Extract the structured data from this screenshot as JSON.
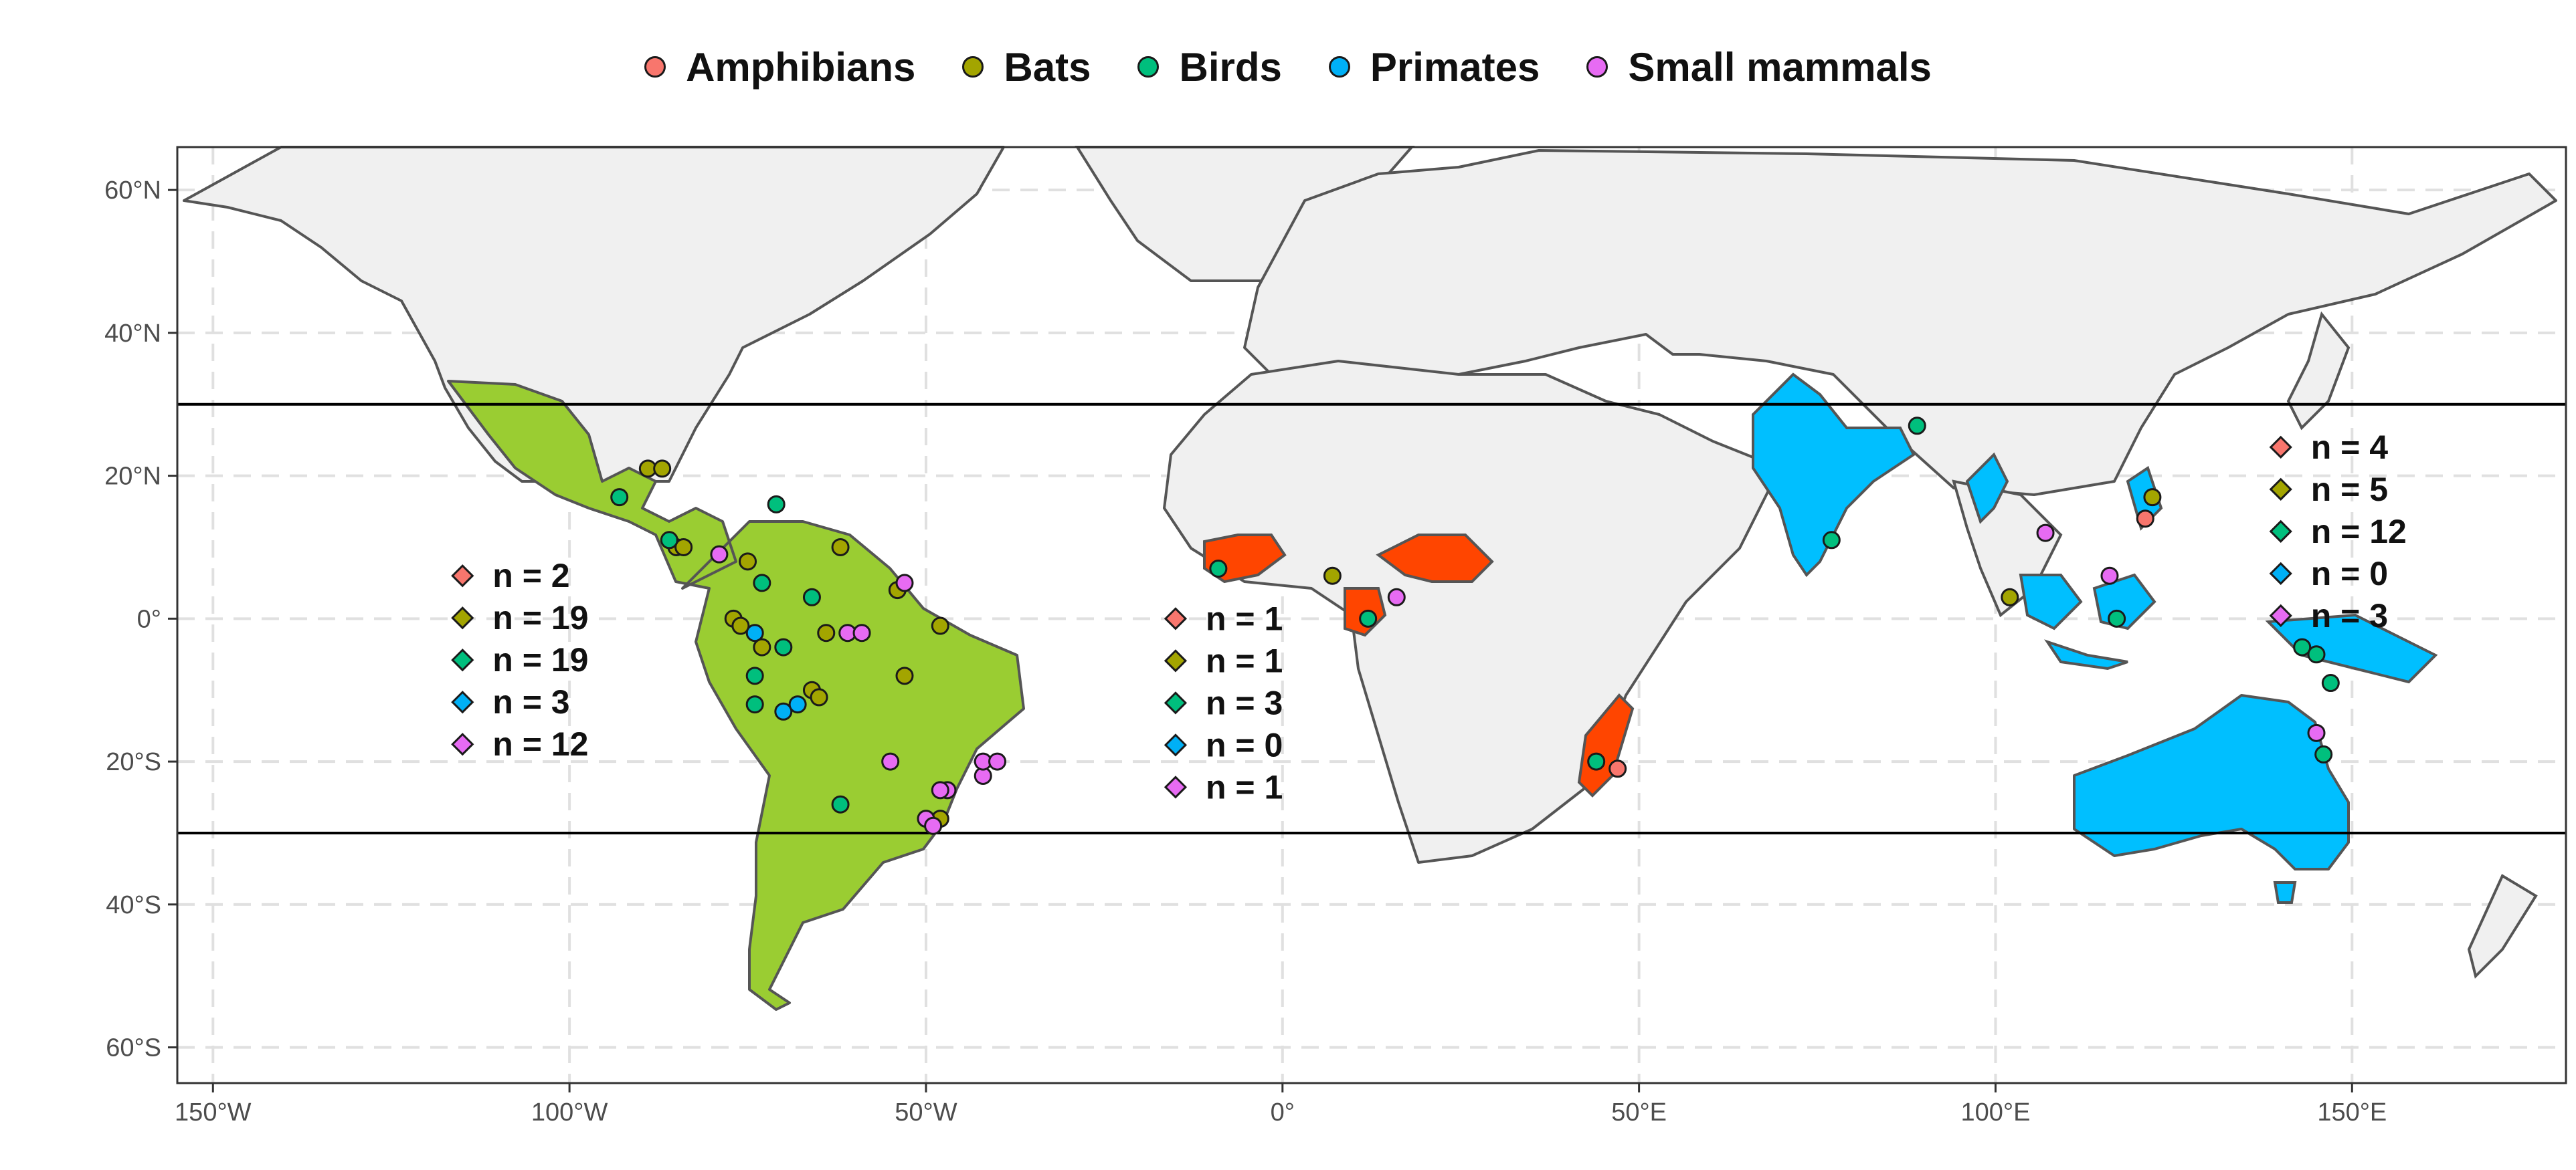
{
  "legend": [
    {
      "label": "Amphibians",
      "color": "#f8766d"
    },
    {
      "label": "Bats",
      "color": "#a3a500"
    },
    {
      "label": "Birds",
      "color": "#00bf7d"
    },
    {
      "label": "Primates",
      "color": "#00b0f6"
    },
    {
      "label": "Small mammals",
      "color": "#e76bf3"
    }
  ],
  "chart_data": {
    "type": "scatter",
    "title": "",
    "xlabel": "",
    "ylabel": "",
    "xlim": [
      -155,
      180
    ],
    "ylim": [
      -65,
      66
    ],
    "x_ticks": [
      {
        "value": -150,
        "label": "150°W"
      },
      {
        "value": -100,
        "label": "100°W"
      },
      {
        "value": -50,
        "label": "50°W"
      },
      {
        "value": 0,
        "label": "0°"
      },
      {
        "value": 50,
        "label": "50°E"
      },
      {
        "value": 100,
        "label": "100°E"
      },
      {
        "value": 150,
        "label": "150°E"
      }
    ],
    "y_ticks": [
      {
        "value": 60,
        "label": "60°N"
      },
      {
        "value": 40,
        "label": "40°N"
      },
      {
        "value": 20,
        "label": "20°N"
      },
      {
        "value": 0,
        "label": "0°"
      },
      {
        "value": -20,
        "label": "20°S"
      },
      {
        "value": -40,
        "label": "40°S"
      },
      {
        "value": -60,
        "label": "60°S"
      }
    ],
    "grid": true,
    "tropic_lines": [
      30,
      -30
    ],
    "region_colors": {
      "americas": "#9acd32",
      "africa": "#ff4500",
      "asia_oceania": "#00bfff",
      "land": "#f0f0f0",
      "border": "#555555"
    },
    "region_counts": [
      {
        "region": "americas",
        "anchor": [
          -115,
          6
        ],
        "counts": [
          {
            "group": "Amphibians",
            "text": "n =  2"
          },
          {
            "group": "Bats",
            "text": "n =  19"
          },
          {
            "group": "Birds",
            "text": "n =  19"
          },
          {
            "group": "Primates",
            "text": "n =  3"
          },
          {
            "group": "Small mammals",
            "text": "n =  12"
          }
        ]
      },
      {
        "region": "africa",
        "anchor": [
          -15,
          0
        ],
        "counts": [
          {
            "group": "Amphibians",
            "text": "n =  1"
          },
          {
            "group": "Bats",
            "text": "n =  1"
          },
          {
            "group": "Birds",
            "text": "n =  3"
          },
          {
            "group": "Primates",
            "text": "n =  0"
          },
          {
            "group": "Small mammals",
            "text": "n =  1"
          }
        ]
      },
      {
        "region": "asia_oceania",
        "anchor": [
          140,
          24
        ],
        "counts": [
          {
            "group": "Amphibians",
            "text": "n =  4"
          },
          {
            "group": "Bats",
            "text": "n =  5"
          },
          {
            "group": "Birds",
            "text": "n =  12"
          },
          {
            "group": "Primates",
            "text": "n =  0"
          },
          {
            "group": "Small mammals",
            "text": "n =  3"
          }
        ]
      }
    ],
    "series": [
      {
        "name": "Amphibians",
        "points": [
          [
            121,
            14
          ],
          [
            47,
            -21
          ]
        ]
      },
      {
        "name": "Bats",
        "points": [
          [
            -89,
            21
          ],
          [
            -87,
            21
          ],
          [
            -85,
            10
          ],
          [
            -84,
            10
          ],
          [
            -75,
            8
          ],
          [
            -62,
            10
          ],
          [
            -77,
            0
          ],
          [
            -76,
            -1
          ],
          [
            -73,
            -4
          ],
          [
            -64,
            -2
          ],
          [
            -66,
            -10
          ],
          [
            -65,
            -11
          ],
          [
            -53,
            -8
          ],
          [
            -54,
            4
          ],
          [
            -48,
            -1
          ],
          [
            -48,
            -28
          ],
          [
            7,
            6
          ],
          [
            102,
            3
          ],
          [
            122,
            17
          ]
        ]
      },
      {
        "name": "Birds",
        "points": [
          [
            -93,
            17
          ],
          [
            -86,
            11
          ],
          [
            -71,
            16
          ],
          [
            -73,
            5
          ],
          [
            -66,
            3
          ],
          [
            -74,
            -8
          ],
          [
            -74,
            -12
          ],
          [
            -70,
            -4
          ],
          [
            -62,
            -26
          ],
          [
            -9,
            7
          ],
          [
            12,
            0
          ],
          [
            44,
            -20
          ],
          [
            77,
            11
          ],
          [
            89,
            27
          ],
          [
            117,
            0
          ],
          [
            143,
            -4
          ],
          [
            145,
            -5
          ],
          [
            147,
            -9
          ],
          [
            146,
            -19
          ]
        ]
      },
      {
        "name": "Primates",
        "points": [
          [
            -74,
            -2
          ],
          [
            -70,
            -13
          ],
          [
            -68,
            -12
          ]
        ]
      },
      {
        "name": "Small mammals",
        "points": [
          [
            -79,
            9
          ],
          [
            -61,
            -2
          ],
          [
            -59,
            -2
          ],
          [
            -53,
            5
          ],
          [
            -55,
            -20
          ],
          [
            -47,
            -24
          ],
          [
            -48,
            -24
          ],
          [
            -42,
            -22
          ],
          [
            -42,
            -20
          ],
          [
            -40,
            -20
          ],
          [
            -50,
            -28
          ],
          [
            -49,
            -29
          ],
          [
            16,
            3
          ],
          [
            107,
            12
          ],
          [
            116,
            6
          ],
          [
            145,
            -16
          ]
        ]
      }
    ]
  }
}
